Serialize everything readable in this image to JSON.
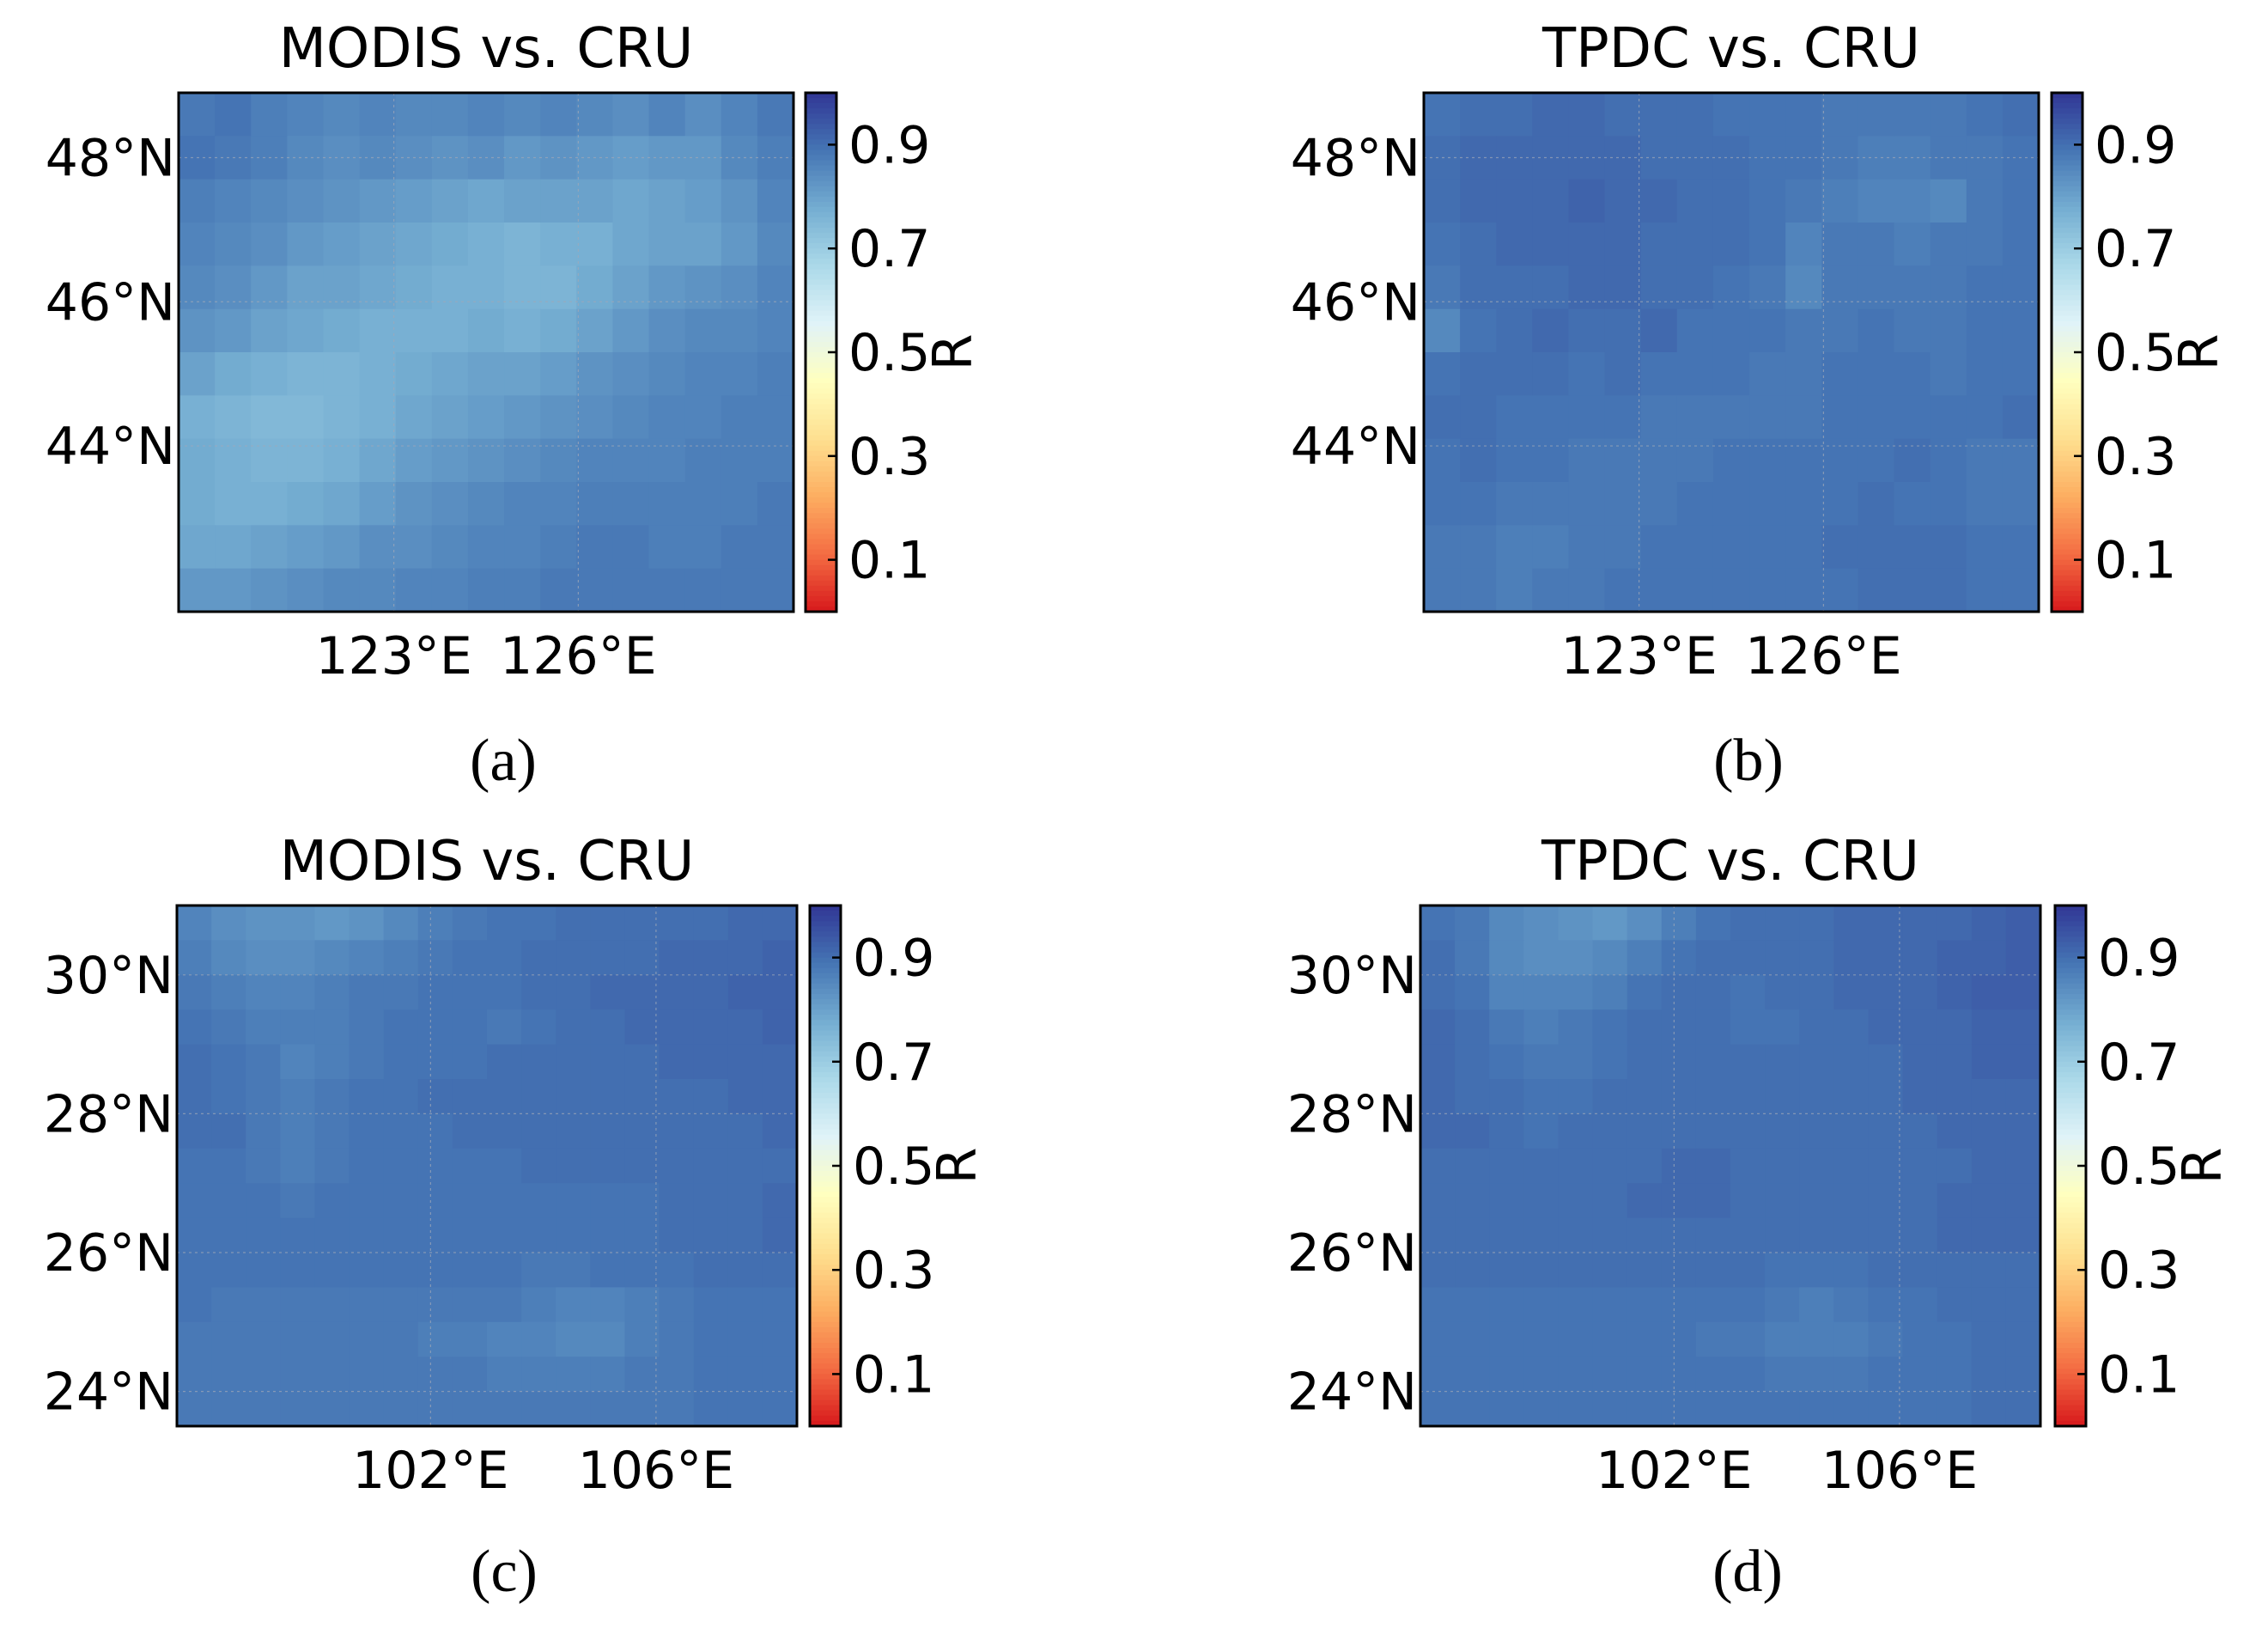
{
  "figure": {
    "colorbar": {
      "label": "R",
      "ticks": [
        "0.1",
        "0.3",
        "0.5",
        "0.7",
        "0.9"
      ],
      "tick_values": [
        0.1,
        0.3,
        0.5,
        0.7,
        0.9
      ],
      "range": [
        0.0,
        1.0
      ],
      "colors": [
        "#d7191c",
        "#f46d43",
        "#fdae61",
        "#fee090",
        "#ffffbf",
        "#e0f3f8",
        "#abd9e9",
        "#74add1",
        "#4575b4",
        "#313695"
      ]
    }
  },
  "chart_data": [
    {
      "type": "heatmap",
      "panel_label": "(a)",
      "title": "MODIS vs. CRU",
      "xlabel": "",
      "ylabel": "",
      "xlim": [
        119.5,
        129.5
      ],
      "ylim": [
        41.7,
        48.9
      ],
      "x_ticks": [
        {
          "value": 123,
          "label": "123°E"
        },
        {
          "value": 126,
          "label": "126°E"
        }
      ],
      "y_ticks": [
        {
          "value": 44,
          "label": "44°N"
        },
        {
          "value": 46,
          "label": "46°N"
        },
        {
          "value": 48,
          "label": "48°N"
        }
      ],
      "grid": true,
      "colorbar_label": "R",
      "values": [
        [
          0.88,
          0.89,
          0.87,
          0.86,
          0.85,
          0.86,
          0.85,
          0.85,
          0.86,
          0.85,
          0.86,
          0.85,
          0.84,
          0.86,
          0.84,
          0.86,
          0.88
        ],
        [
          0.89,
          0.88,
          0.87,
          0.85,
          0.84,
          0.85,
          0.84,
          0.83,
          0.84,
          0.82,
          0.83,
          0.82,
          0.81,
          0.82,
          0.82,
          0.85,
          0.87
        ],
        [
          0.87,
          0.86,
          0.85,
          0.84,
          0.83,
          0.82,
          0.81,
          0.8,
          0.79,
          0.8,
          0.8,
          0.8,
          0.79,
          0.8,
          0.81,
          0.83,
          0.86
        ],
        [
          0.86,
          0.85,
          0.84,
          0.82,
          0.81,
          0.8,
          0.79,
          0.78,
          0.77,
          0.76,
          0.77,
          0.77,
          0.79,
          0.8,
          0.8,
          0.82,
          0.85
        ],
        [
          0.85,
          0.84,
          0.82,
          0.8,
          0.8,
          0.79,
          0.78,
          0.77,
          0.77,
          0.76,
          0.76,
          0.78,
          0.8,
          0.82,
          0.83,
          0.84,
          0.86
        ],
        [
          0.83,
          0.82,
          0.8,
          0.79,
          0.78,
          0.77,
          0.77,
          0.77,
          0.78,
          0.77,
          0.78,
          0.8,
          0.82,
          0.84,
          0.85,
          0.85,
          0.86
        ],
        [
          0.8,
          0.78,
          0.77,
          0.76,
          0.76,
          0.77,
          0.78,
          0.79,
          0.8,
          0.8,
          0.81,
          0.83,
          0.84,
          0.85,
          0.86,
          0.86,
          0.87
        ],
        [
          0.77,
          0.76,
          0.75,
          0.75,
          0.76,
          0.77,
          0.79,
          0.8,
          0.81,
          0.82,
          0.83,
          0.84,
          0.85,
          0.86,
          0.86,
          0.87,
          0.87
        ],
        [
          0.78,
          0.77,
          0.76,
          0.76,
          0.77,
          0.79,
          0.81,
          0.82,
          0.83,
          0.84,
          0.85,
          0.86,
          0.86,
          0.86,
          0.87,
          0.87,
          0.87
        ],
        [
          0.78,
          0.77,
          0.77,
          0.78,
          0.79,
          0.81,
          0.83,
          0.84,
          0.85,
          0.86,
          0.86,
          0.87,
          0.87,
          0.87,
          0.87,
          0.87,
          0.88
        ],
        [
          0.79,
          0.79,
          0.8,
          0.81,
          0.82,
          0.84,
          0.84,
          0.85,
          0.86,
          0.86,
          0.87,
          0.88,
          0.88,
          0.87,
          0.87,
          0.88,
          0.88
        ],
        [
          0.82,
          0.82,
          0.83,
          0.84,
          0.85,
          0.85,
          0.86,
          0.86,
          0.87,
          0.87,
          0.88,
          0.88,
          0.88,
          0.88,
          0.88,
          0.88,
          0.88
        ]
      ]
    },
    {
      "type": "heatmap",
      "panel_label": "(b)",
      "title": "TPDC vs. CRU",
      "xlabel": "",
      "ylabel": "",
      "xlim": [
        119.5,
        129.5
      ],
      "ylim": [
        41.7,
        48.9
      ],
      "x_ticks": [
        {
          "value": 123,
          "label": "123°E"
        },
        {
          "value": 126,
          "label": "126°E"
        }
      ],
      "y_ticks": [
        {
          "value": 44,
          "label": "44°N"
        },
        {
          "value": 46,
          "label": "46°N"
        },
        {
          "value": 48,
          "label": "48°N"
        }
      ],
      "grid": true,
      "colorbar_label": "R",
      "values": [
        [
          0.89,
          0.9,
          0.9,
          0.91,
          0.91,
          0.9,
          0.9,
          0.9,
          0.89,
          0.89,
          0.89,
          0.88,
          0.88,
          0.88,
          0.88,
          0.89,
          0.9
        ],
        [
          0.9,
          0.91,
          0.91,
          0.91,
          0.91,
          0.91,
          0.9,
          0.9,
          0.9,
          0.89,
          0.89,
          0.88,
          0.87,
          0.87,
          0.88,
          0.88,
          0.89
        ],
        [
          0.9,
          0.91,
          0.91,
          0.91,
          0.92,
          0.91,
          0.91,
          0.9,
          0.9,
          0.89,
          0.88,
          0.87,
          0.86,
          0.86,
          0.85,
          0.88,
          0.89
        ],
        [
          0.89,
          0.9,
          0.91,
          0.91,
          0.91,
          0.91,
          0.9,
          0.9,
          0.9,
          0.89,
          0.86,
          0.88,
          0.88,
          0.87,
          0.88,
          0.88,
          0.89
        ],
        [
          0.88,
          0.9,
          0.9,
          0.9,
          0.91,
          0.91,
          0.9,
          0.9,
          0.89,
          0.88,
          0.85,
          0.88,
          0.88,
          0.88,
          0.88,
          0.89,
          0.89
        ],
        [
          0.85,
          0.89,
          0.9,
          0.91,
          0.9,
          0.9,
          0.91,
          0.89,
          0.89,
          0.89,
          0.88,
          0.88,
          0.89,
          0.88,
          0.88,
          0.89,
          0.89
        ],
        [
          0.89,
          0.9,
          0.9,
          0.9,
          0.89,
          0.9,
          0.89,
          0.89,
          0.89,
          0.88,
          0.88,
          0.89,
          0.89,
          0.89,
          0.88,
          0.89,
          0.89
        ],
        [
          0.9,
          0.9,
          0.89,
          0.89,
          0.89,
          0.89,
          0.88,
          0.88,
          0.88,
          0.88,
          0.88,
          0.89,
          0.89,
          0.89,
          0.89,
          0.89,
          0.9
        ],
        [
          0.89,
          0.9,
          0.89,
          0.89,
          0.88,
          0.88,
          0.88,
          0.88,
          0.89,
          0.89,
          0.89,
          0.89,
          0.89,
          0.9,
          0.89,
          0.88,
          0.88
        ],
        [
          0.89,
          0.89,
          0.88,
          0.88,
          0.88,
          0.88,
          0.88,
          0.89,
          0.89,
          0.89,
          0.89,
          0.89,
          0.9,
          0.89,
          0.89,
          0.88,
          0.88
        ],
        [
          0.88,
          0.88,
          0.87,
          0.87,
          0.88,
          0.88,
          0.89,
          0.89,
          0.89,
          0.89,
          0.89,
          0.9,
          0.9,
          0.9,
          0.9,
          0.89,
          0.89
        ],
        [
          0.88,
          0.88,
          0.87,
          0.88,
          0.88,
          0.89,
          0.89,
          0.89,
          0.89,
          0.89,
          0.89,
          0.89,
          0.9,
          0.9,
          0.9,
          0.89,
          0.89
        ]
      ]
    },
    {
      "type": "heatmap",
      "panel_label": "(c)",
      "title": "MODIS vs. CRU",
      "xlabel": "",
      "ylabel": "",
      "xlim": [
        97.5,
        108.5
      ],
      "ylim": [
        23.5,
        31.0
      ],
      "x_ticks": [
        {
          "value": 102,
          "label": "102°E"
        },
        {
          "value": 106,
          "label": "106°E"
        }
      ],
      "y_ticks": [
        {
          "value": 24,
          "label": "24°N"
        },
        {
          "value": 26,
          "label": "26°N"
        },
        {
          "value": 28,
          "label": "28°N"
        },
        {
          "value": 30,
          "label": "30°N"
        }
      ],
      "grid": true,
      "colorbar_label": "R",
      "values": [
        [
          0.86,
          0.84,
          0.83,
          0.83,
          0.82,
          0.83,
          0.85,
          0.87,
          0.88,
          0.89,
          0.89,
          0.9,
          0.9,
          0.9,
          0.9,
          0.9,
          0.91,
          0.91
        ],
        [
          0.87,
          0.85,
          0.84,
          0.84,
          0.85,
          0.86,
          0.87,
          0.88,
          0.89,
          0.89,
          0.9,
          0.9,
          0.9,
          0.9,
          0.91,
          0.91,
          0.91,
          0.92
        ],
        [
          0.88,
          0.87,
          0.86,
          0.86,
          0.87,
          0.88,
          0.88,
          0.89,
          0.89,
          0.89,
          0.9,
          0.9,
          0.91,
          0.91,
          0.91,
          0.91,
          0.92,
          0.92
        ],
        [
          0.89,
          0.88,
          0.87,
          0.87,
          0.87,
          0.88,
          0.89,
          0.89,
          0.89,
          0.88,
          0.89,
          0.9,
          0.9,
          0.91,
          0.91,
          0.91,
          0.91,
          0.92
        ],
        [
          0.9,
          0.89,
          0.88,
          0.86,
          0.87,
          0.88,
          0.89,
          0.89,
          0.89,
          0.9,
          0.9,
          0.9,
          0.9,
          0.9,
          0.91,
          0.91,
          0.91,
          0.91
        ],
        [
          0.9,
          0.89,
          0.88,
          0.87,
          0.88,
          0.89,
          0.89,
          0.9,
          0.9,
          0.9,
          0.9,
          0.9,
          0.9,
          0.9,
          0.9,
          0.9,
          0.91,
          0.91
        ],
        [
          0.9,
          0.9,
          0.88,
          0.87,
          0.88,
          0.89,
          0.89,
          0.89,
          0.9,
          0.9,
          0.9,
          0.9,
          0.9,
          0.9,
          0.9,
          0.9,
          0.9,
          0.91
        ],
        [
          0.89,
          0.89,
          0.88,
          0.87,
          0.88,
          0.89,
          0.89,
          0.89,
          0.89,
          0.89,
          0.9,
          0.9,
          0.9,
          0.9,
          0.9,
          0.9,
          0.9,
          0.9
        ],
        [
          0.89,
          0.89,
          0.89,
          0.88,
          0.89,
          0.89,
          0.89,
          0.89,
          0.89,
          0.89,
          0.89,
          0.89,
          0.89,
          0.89,
          0.9,
          0.9,
          0.9,
          0.91
        ],
        [
          0.89,
          0.89,
          0.89,
          0.89,
          0.89,
          0.89,
          0.89,
          0.89,
          0.89,
          0.89,
          0.89,
          0.89,
          0.89,
          0.89,
          0.9,
          0.9,
          0.9,
          0.91
        ],
        [
          0.89,
          0.89,
          0.89,
          0.89,
          0.89,
          0.89,
          0.89,
          0.89,
          0.89,
          0.89,
          0.88,
          0.88,
          0.89,
          0.89,
          0.89,
          0.9,
          0.9,
          0.9
        ],
        [
          0.89,
          0.88,
          0.88,
          0.88,
          0.88,
          0.88,
          0.88,
          0.88,
          0.88,
          0.88,
          0.87,
          0.86,
          0.86,
          0.87,
          0.88,
          0.89,
          0.89,
          0.89
        ],
        [
          0.88,
          0.88,
          0.88,
          0.88,
          0.88,
          0.88,
          0.88,
          0.87,
          0.87,
          0.86,
          0.86,
          0.85,
          0.85,
          0.87,
          0.88,
          0.89,
          0.89,
          0.89
        ],
        [
          0.88,
          0.88,
          0.88,
          0.88,
          0.88,
          0.88,
          0.88,
          0.88,
          0.88,
          0.87,
          0.87,
          0.87,
          0.87,
          0.88,
          0.88,
          0.89,
          0.89,
          0.89
        ],
        [
          0.88,
          0.88,
          0.88,
          0.88,
          0.88,
          0.88,
          0.88,
          0.88,
          0.88,
          0.88,
          0.88,
          0.88,
          0.88,
          0.88,
          0.88,
          0.89,
          0.89,
          0.89
        ]
      ]
    },
    {
      "type": "heatmap",
      "panel_label": "(d)",
      "title": "TPDC vs. CRU",
      "xlabel": "",
      "ylabel": "",
      "xlim": [
        97.5,
        108.5
      ],
      "ylim": [
        23.5,
        31.0
      ],
      "x_ticks": [
        {
          "value": 102,
          "label": "102°E"
        },
        {
          "value": 106,
          "label": "106°E"
        }
      ],
      "y_ticks": [
        {
          "value": 24,
          "label": "24°N"
        },
        {
          "value": 26,
          "label": "26°N"
        },
        {
          "value": 28,
          "label": "28°N"
        },
        {
          "value": 30,
          "label": "30°N"
        }
      ],
      "grid": true,
      "colorbar_label": "R",
      "values": [
        [
          0.89,
          0.88,
          0.85,
          0.84,
          0.83,
          0.82,
          0.84,
          0.87,
          0.89,
          0.9,
          0.9,
          0.9,
          0.91,
          0.91,
          0.91,
          0.91,
          0.92,
          0.93
        ],
        [
          0.9,
          0.88,
          0.85,
          0.84,
          0.84,
          0.85,
          0.87,
          0.89,
          0.9,
          0.9,
          0.9,
          0.9,
          0.91,
          0.91,
          0.91,
          0.92,
          0.92,
          0.93
        ],
        [
          0.9,
          0.89,
          0.86,
          0.86,
          0.86,
          0.87,
          0.89,
          0.9,
          0.9,
          0.89,
          0.9,
          0.9,
          0.91,
          0.91,
          0.91,
          0.92,
          0.93,
          0.93
        ],
        [
          0.91,
          0.9,
          0.88,
          0.87,
          0.88,
          0.89,
          0.9,
          0.9,
          0.9,
          0.89,
          0.89,
          0.9,
          0.9,
          0.91,
          0.91,
          0.91,
          0.92,
          0.92
        ],
        [
          0.91,
          0.9,
          0.89,
          0.88,
          0.88,
          0.89,
          0.9,
          0.9,
          0.9,
          0.9,
          0.9,
          0.9,
          0.9,
          0.9,
          0.91,
          0.91,
          0.92,
          0.92
        ],
        [
          0.91,
          0.9,
          0.9,
          0.89,
          0.89,
          0.9,
          0.9,
          0.9,
          0.9,
          0.9,
          0.9,
          0.9,
          0.9,
          0.9,
          0.91,
          0.91,
          0.91,
          0.91
        ],
        [
          0.91,
          0.91,
          0.9,
          0.89,
          0.9,
          0.9,
          0.9,
          0.9,
          0.9,
          0.9,
          0.9,
          0.9,
          0.9,
          0.9,
          0.9,
          0.91,
          0.91,
          0.91
        ],
        [
          0.9,
          0.9,
          0.9,
          0.9,
          0.9,
          0.9,
          0.9,
          0.91,
          0.91,
          0.9,
          0.9,
          0.9,
          0.9,
          0.9,
          0.9,
          0.9,
          0.91,
          0.91
        ],
        [
          0.9,
          0.9,
          0.9,
          0.9,
          0.9,
          0.9,
          0.91,
          0.91,
          0.91,
          0.9,
          0.9,
          0.9,
          0.9,
          0.9,
          0.9,
          0.91,
          0.91,
          0.91
        ],
        [
          0.9,
          0.9,
          0.9,
          0.9,
          0.9,
          0.9,
          0.9,
          0.9,
          0.9,
          0.9,
          0.9,
          0.9,
          0.9,
          0.9,
          0.9,
          0.91,
          0.91,
          0.91
        ],
        [
          0.9,
          0.9,
          0.9,
          0.9,
          0.9,
          0.9,
          0.9,
          0.9,
          0.9,
          0.9,
          0.89,
          0.89,
          0.89,
          0.9,
          0.9,
          0.9,
          0.9,
          0.9
        ],
        [
          0.89,
          0.89,
          0.89,
          0.89,
          0.89,
          0.89,
          0.89,
          0.89,
          0.89,
          0.89,
          0.88,
          0.87,
          0.88,
          0.89,
          0.89,
          0.9,
          0.9,
          0.9
        ],
        [
          0.89,
          0.89,
          0.89,
          0.89,
          0.89,
          0.89,
          0.89,
          0.89,
          0.88,
          0.88,
          0.87,
          0.87,
          0.87,
          0.88,
          0.89,
          0.89,
          0.9,
          0.9
        ],
        [
          0.89,
          0.89,
          0.89,
          0.89,
          0.89,
          0.89,
          0.89,
          0.89,
          0.89,
          0.89,
          0.88,
          0.88,
          0.88,
          0.89,
          0.89,
          0.89,
          0.9,
          0.9
        ],
        [
          0.89,
          0.89,
          0.89,
          0.89,
          0.89,
          0.89,
          0.89,
          0.89,
          0.89,
          0.89,
          0.89,
          0.89,
          0.89,
          0.89,
          0.89,
          0.89,
          0.9,
          0.9
        ]
      ]
    }
  ]
}
